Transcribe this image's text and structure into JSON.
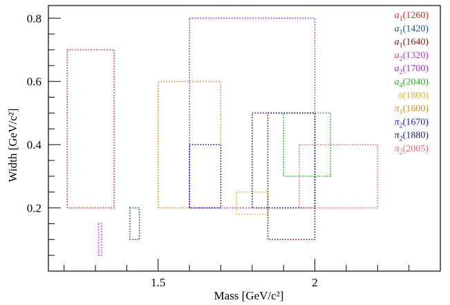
{
  "chart_data": {
    "type": "box-ranges",
    "title": "",
    "xlabel": "Mass [GeV/c²]",
    "ylabel": "Width [GeV/c²]",
    "xlim": [
      1.15,
      2.4
    ],
    "ylim": [
      0.0,
      0.84
    ],
    "x_ticks": [
      1.5,
      2.0
    ],
    "x_tick_labels": [
      "1.5",
      "2"
    ],
    "y_ticks": [
      0.2,
      0.4,
      0.6,
      0.8
    ],
    "y_tick_labels": [
      "0.2",
      "0.4",
      "0.6",
      "0.8"
    ],
    "grid": false,
    "legend_position": "top-right",
    "series": [
      {
        "name": "a1(1260)",
        "base": "a",
        "sub": "1",
        "mass": "(1260)",
        "color": "#dd2222",
        "x": [
          1.21,
          1.36
        ],
        "y": [
          0.2,
          0.7
        ]
      },
      {
        "name": "a1(1420)",
        "base": "a",
        "sub": "1",
        "mass": "(1420)",
        "color": "#1a4f7a",
        "x": [
          1.41,
          1.44
        ],
        "y": [
          0.1,
          0.2
        ]
      },
      {
        "name": "a1(1640)",
        "base": "a",
        "sub": "1",
        "mass": "(1640)",
        "color": "#7a1010",
        "x": [
          1.85,
          2.0
        ],
        "y": [
          0.1,
          0.5
        ]
      },
      {
        "name": "a2(1320)",
        "base": "a",
        "sub": "2",
        "mass": "(1320)",
        "color": "#e020e0",
        "x": [
          1.31,
          1.32
        ],
        "y": [
          0.05,
          0.15
        ]
      },
      {
        "name": "a2(1700)",
        "base": "a",
        "sub": "2",
        "mass": "(1700)",
        "color": "#9b30c8",
        "x": [
          1.6,
          2.0
        ],
        "y": [
          0.2,
          0.8
        ]
      },
      {
        "name": "a4(2040)",
        "base": "a",
        "sub": "4",
        "mass": "(2040)",
        "color": "#22aa22",
        "x": [
          1.9,
          2.05
        ],
        "y": [
          0.3,
          0.5
        ]
      },
      {
        "name": "π(1800)",
        "base": "π",
        "sub": "",
        "mass": "(1800)",
        "color": "#f2b01e",
        "x": [
          1.75,
          1.85
        ],
        "y": [
          0.18,
          0.25
        ]
      },
      {
        "name": "π1(1600)",
        "base": "π",
        "sub": "1",
        "mass": "(1600)",
        "color": "#d8861b",
        "x": [
          1.5,
          1.7
        ],
        "y": [
          0.2,
          0.6
        ]
      },
      {
        "name": "π2(1670)",
        "base": "π",
        "sub": "2",
        "mass": "(1670)",
        "color": "#1414d2",
        "x": [
          1.6,
          1.7
        ],
        "y": [
          0.2,
          0.4
        ]
      },
      {
        "name": "π2(1880)",
        "base": "π",
        "sub": "2",
        "mass": "(1880)",
        "color": "#141a7a",
        "x": [
          1.8,
          2.0
        ],
        "y": [
          0.2,
          0.5
        ]
      },
      {
        "name": "π2(2005)",
        "base": "π",
        "sub": "2",
        "mass": "(2005)",
        "color": "#f06868",
        "x": [
          1.95,
          2.2
        ],
        "y": [
          0.2,
          0.4
        ]
      }
    ]
  }
}
